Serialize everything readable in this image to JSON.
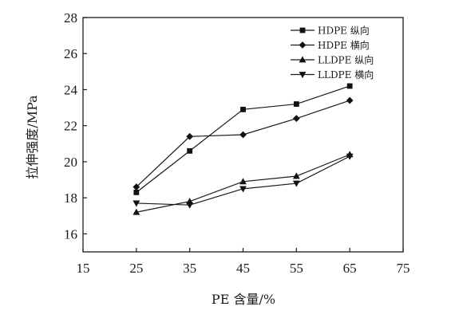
{
  "chart_data": {
    "type": "line",
    "title": "",
    "xlabel": "PE 含量/%",
    "ylabel": "拉伸强度/MPa",
    "xlim": [
      15,
      75
    ],
    "ylim": [
      15,
      28
    ],
    "xticks": [
      15,
      25,
      35,
      45,
      55,
      65,
      75
    ],
    "yticks": [
      16,
      18,
      20,
      22,
      24,
      26,
      28
    ],
    "grid": false,
    "legend_position": "top-right",
    "x": [
      25,
      35,
      45,
      55,
      65
    ],
    "series": [
      {
        "name": "HDPE 纵向",
        "marker": "square",
        "values": [
          18.3,
          20.6,
          22.9,
          23.2,
          24.2
        ]
      },
      {
        "name": "HDPE 横向",
        "marker": "diamond",
        "values": [
          18.6,
          21.4,
          21.5,
          22.4,
          23.4
        ]
      },
      {
        "name": "LLDPE 纵向",
        "marker": "triangle-up",
        "values": [
          17.2,
          17.8,
          18.9,
          19.2,
          20.4
        ]
      },
      {
        "name": "LLDPE 横向",
        "marker": "triangle-down",
        "values": [
          17.7,
          17.6,
          18.5,
          18.8,
          20.3
        ]
      }
    ],
    "colors": {
      "line": "#1a1a1a",
      "marker": "#111111",
      "axis": "#1a1a1a"
    }
  }
}
